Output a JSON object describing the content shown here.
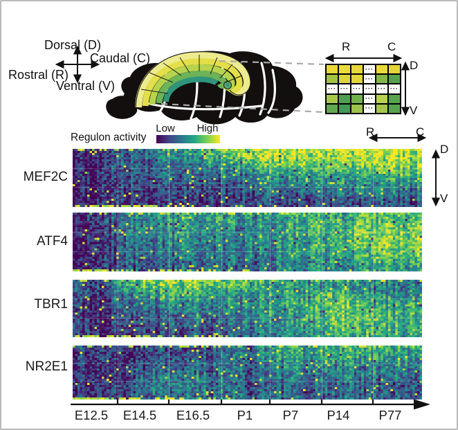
{
  "anatomy": {
    "compass": {
      "dorsal": "Dorsal (D)",
      "caudal": "Caudal (C)",
      "rostral": "Rostral (R)",
      "ventral": "Ventral (V)"
    }
  },
  "schematic": {
    "axis_horizontal": {
      "left": "R",
      "right": "C"
    },
    "axis_vertical": {
      "top": "D",
      "bottom": "V"
    },
    "dots": "···",
    "grid": [
      [
        "#e8d93b",
        "#ebdb3d",
        "#e6d83a",
        "dots",
        "#e9d93b",
        "#e4d53a"
      ],
      [
        "#a2c245",
        "#dcd63c",
        "#e3d63a",
        "dots",
        "#82b74a",
        "#56a24c"
      ],
      [
        "dots",
        "dots",
        "dots",
        "dots",
        "dots",
        "dots"
      ],
      [
        "#a8c84b",
        "#4e9f53",
        "#71b04b",
        "dots",
        "#b5d14f",
        "#58a44d"
      ],
      [
        "#60a950",
        "#40985a",
        "#9ec24a",
        "dots",
        "#a3c54b",
        "#56a34e"
      ]
    ]
  },
  "colorbar": {
    "label": "Regulon activity",
    "low": "Low",
    "high": "High"
  },
  "heatmap_axes": {
    "horizontal_left": "R",
    "horizontal_right": "C",
    "vertical_top": "D",
    "vertical_bottom": "V"
  },
  "chart_data": {
    "type": "heatmap",
    "colormap": "viridis",
    "colormap_stops": [
      "#440154",
      "#414487",
      "#2a788e",
      "#22a884",
      "#7ad151",
      "#fde725"
    ],
    "value_scale": {
      "min_label": "Low",
      "max_label": "High"
    },
    "x_categories": [
      "E12.5",
      "E14.5",
      "E16.5",
      "P1",
      "P7",
      "P14",
      "P77"
    ],
    "x_axis_note": "developmental time, arrow to the right",
    "y_axis_note": "columns span rostral (R) to caudal (C); rows span dorsal (D, top) to ventral (V, bottom)",
    "legend": "Regulon activity, Low to High (viridis)",
    "series": [
      {
        "regulon": "MEF2C",
        "bands_dorsal_to_ventral": [
          [
            0.12,
            0.35,
            0.55,
            0.8,
            0.88,
            0.9,
            0.93
          ],
          [
            0.1,
            0.3,
            0.42,
            0.6,
            0.8,
            0.82,
            0.85
          ],
          [
            0.1,
            0.28,
            0.33,
            0.42,
            0.6,
            0.62,
            0.68
          ],
          [
            0.08,
            0.22,
            0.26,
            0.3,
            0.45,
            0.5,
            0.52
          ],
          [
            0.08,
            0.18,
            0.2,
            0.22,
            0.32,
            0.4,
            0.38
          ],
          [
            0.1,
            0.15,
            0.15,
            0.18,
            0.2,
            0.25,
            0.28
          ]
        ]
      },
      {
        "regulon": "ATF4",
        "bands_dorsal_to_ventral": [
          [
            0.15,
            0.5,
            0.55,
            0.5,
            0.58,
            0.62,
            0.68
          ],
          [
            0.12,
            0.5,
            0.55,
            0.45,
            0.6,
            0.7,
            0.78
          ],
          [
            0.1,
            0.45,
            0.5,
            0.42,
            0.58,
            0.72,
            0.8
          ],
          [
            0.1,
            0.4,
            0.45,
            0.4,
            0.55,
            0.68,
            0.78
          ],
          [
            0.1,
            0.35,
            0.4,
            0.38,
            0.5,
            0.6,
            0.7
          ],
          [
            0.12,
            0.3,
            0.35,
            0.33,
            0.45,
            0.5,
            0.55
          ]
        ]
      },
      {
        "regulon": "TBR1",
        "bands_dorsal_to_ventral": [
          [
            0.2,
            0.75,
            0.8,
            0.65,
            0.5,
            0.5,
            0.4
          ],
          [
            0.15,
            0.55,
            0.6,
            0.5,
            0.55,
            0.65,
            0.45
          ],
          [
            0.12,
            0.42,
            0.48,
            0.45,
            0.58,
            0.75,
            0.55
          ],
          [
            0.1,
            0.32,
            0.38,
            0.42,
            0.58,
            0.78,
            0.6
          ],
          [
            0.1,
            0.25,
            0.3,
            0.38,
            0.52,
            0.72,
            0.6
          ],
          [
            0.1,
            0.2,
            0.25,
            0.32,
            0.48,
            0.68,
            0.58
          ]
        ]
      },
      {
        "regulon": "NR2E1",
        "bands_dorsal_to_ventral": [
          [
            0.15,
            0.18,
            0.22,
            0.35,
            0.55,
            0.6,
            0.58
          ],
          [
            0.12,
            0.2,
            0.28,
            0.35,
            0.5,
            0.55,
            0.5
          ],
          [
            0.1,
            0.28,
            0.32,
            0.3,
            0.4,
            0.45,
            0.42
          ],
          [
            0.1,
            0.32,
            0.38,
            0.28,
            0.35,
            0.4,
            0.35
          ],
          [
            0.12,
            0.35,
            0.42,
            0.3,
            0.3,
            0.35,
            0.3
          ],
          [
            0.14,
            0.3,
            0.38,
            0.3,
            0.28,
            0.3,
            0.3
          ]
        ]
      }
    ]
  }
}
